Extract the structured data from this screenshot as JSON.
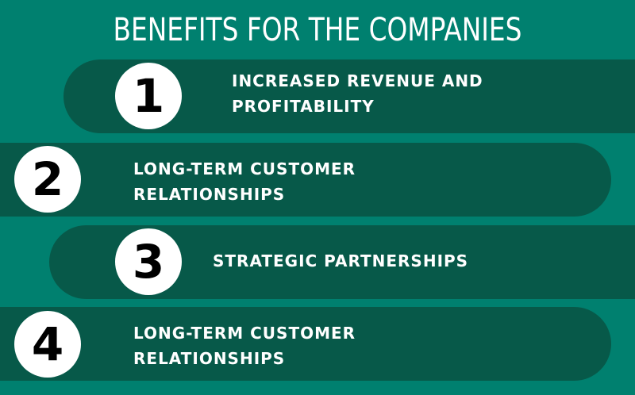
{
  "title": "BENEFITS FOR THE COMPANIES",
  "items": [
    {
      "number": "1",
      "text": "INCREASED REVENUE AND\nPROFITABILITY"
    },
    {
      "number": "2",
      "text": "LONG-TERM CUSTOMER\nRELATIONSHIPS"
    },
    {
      "number": "3",
      "text": "STRATEGIC PARTNERSHIPS"
    },
    {
      "number": "4",
      "text": "LONG-TERM CUSTOMER\nRELATIONSHIPS"
    }
  ],
  "colors": {
    "background": "#00806f",
    "band": "#075949",
    "circle": "#ffffff",
    "number": "#000000",
    "text": "#ffffff"
  }
}
